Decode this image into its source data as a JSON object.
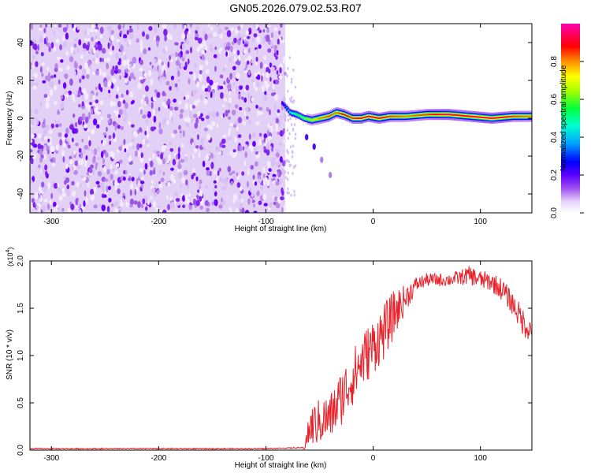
{
  "title": "GN05.2026.079.02.53.R07",
  "chart_data": [
    {
      "type": "heatmap",
      "title": "GN05.2026.079.02.53.R07",
      "xlabel": "Height of straight line (km)",
      "ylabel": "Frequency (Hz)",
      "xlim": [
        -320,
        148
      ],
      "ylim": [
        -50,
        50
      ],
      "xticks": [
        -300,
        -200,
        -100,
        0,
        100
      ],
      "yticks": [
        -40,
        -20,
        0,
        20,
        40
      ],
      "colorbar": {
        "label": "Normalized spectral amplitude",
        "range": [
          0,
          1
        ],
        "ticks": [
          "0.0",
          "0.2",
          "0.4",
          "0.6",
          "0.8"
        ],
        "colors": [
          "#ffffff",
          "#c8a0f0",
          "#8000ff",
          "#0000ff",
          "#00c8ff",
          "#00ff80",
          "#80ff00",
          "#ffff00",
          "#ff8000",
          "#ff0000",
          "#ff00a0"
        ]
      },
      "noise_region": {
        "x_from": -320,
        "x_to": -82,
        "amplitude": 0.15
      },
      "signal_trace": {
        "x": [
          -85,
          -78,
          -72,
          -65,
          -58,
          -50,
          -42,
          -35,
          -28,
          -20,
          -12,
          -5,
          5,
          15,
          30,
          50,
          70,
          90,
          110,
          130,
          148
        ],
        "freq": [
          8,
          3,
          2,
          0,
          -1,
          0,
          1,
          3,
          2,
          0,
          0,
          1,
          0,
          1,
          1,
          2,
          2,
          1,
          0,
          1,
          1
        ],
        "peak": [
          0.25,
          0.45,
          0.55,
          0.6,
          0.7,
          0.8,
          0.85,
          0.8,
          0.9,
          0.85,
          0.9,
          0.9,
          0.9,
          0.85,
          0.8,
          0.85,
          0.95,
          0.9,
          0.95,
          0.85,
          0.8
        ]
      },
      "side_branch": {
        "x": [
          -62,
          -55,
          -48,
          -40
        ],
        "freq": [
          -10,
          -15,
          -22,
          -30
        ]
      }
    },
    {
      "type": "line",
      "xlabel": "Height of straight line (km)",
      "ylabel": "SNR (10 * v/v)",
      "y_multiplier": "(x10^4)",
      "y_multiplier_base": "(x10",
      "y_multiplier_exp": "4",
      "y_multiplier_close": ")",
      "xlim": [
        -320,
        148
      ],
      "ylim": [
        0,
        2.0
      ],
      "xticks": [
        -300,
        -200,
        -100,
        0,
        100
      ],
      "yticks": [
        "0.0",
        "0.5",
        "1.0",
        "1.5",
        "2.0"
      ],
      "series": [
        {
          "name": "SNR",
          "color": "#e8222a",
          "x": [
            -320,
            -150,
            -100,
            -65,
            -58,
            -50,
            -40,
            -30,
            -20,
            -10,
            0,
            10,
            20,
            30,
            40,
            50,
            60,
            70,
            80,
            90,
            100,
            110,
            120,
            130,
            140,
            148
          ],
          "y": [
            0.01,
            0.01,
            0.01,
            0.02,
            0.25,
            0.3,
            0.35,
            0.55,
            0.75,
            0.95,
            1.1,
            1.25,
            1.45,
            1.6,
            1.75,
            1.8,
            1.8,
            1.8,
            1.82,
            1.85,
            1.8,
            1.78,
            1.7,
            1.55,
            1.35,
            1.25
          ],
          "noise": [
            0,
            0,
            0,
            0.02,
            0.22,
            0.25,
            0.25,
            0.3,
            0.3,
            0.3,
            0.3,
            0.3,
            0.25,
            0.15,
            0.08,
            0.07,
            0.07,
            0.07,
            0.08,
            0.1,
            0.1,
            0.1,
            0.12,
            0.12,
            0.15,
            0.12
          ]
        }
      ]
    }
  ]
}
